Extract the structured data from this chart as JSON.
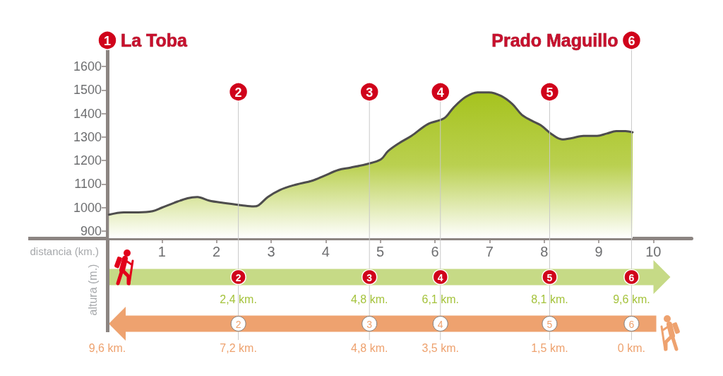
{
  "chart_data": {
    "type": "area",
    "x": [
      0.03,
      0.3,
      0.57,
      0.83,
      1.0,
      1.22,
      1.47,
      1.65,
      1.86,
      2.12,
      2.46,
      2.68,
      2.77,
      2.94,
      3.16,
      3.41,
      3.76,
      3.97,
      4.23,
      4.45,
      4.75,
      5.01,
      5.14,
      5.35,
      5.57,
      5.87,
      6.17,
      6.34,
      6.56,
      6.78,
      6.99,
      7.21,
      7.42,
      7.59,
      7.77,
      7.94,
      8.15,
      8.33,
      8.5,
      8.72,
      8.97,
      9.15,
      9.32,
      9.49,
      9.62
    ],
    "values": [
      970,
      980,
      980,
      985,
      1000,
      1020,
      1040,
      1045,
      1030,
      1020,
      1010,
      1005,
      1010,
      1045,
      1075,
      1095,
      1115,
      1135,
      1160,
      1170,
      1185,
      1205,
      1240,
      1275,
      1305,
      1355,
      1380,
      1425,
      1470,
      1490,
      1490,
      1475,
      1440,
      1395,
      1370,
      1350,
      1310,
      1290,
      1295,
      1305,
      1305,
      1315,
      1325,
      1325,
      1320
    ],
    "color": "#a6c31e",
    "xlabel": "distancia (km.)",
    "ylabel": "altura (m.)",
    "xlim": [
      0,
      10.7
    ],
    "xticks": [
      1,
      2,
      3,
      4,
      5,
      6,
      7,
      8,
      9,
      10
    ],
    "ylim": [
      870,
      1700
    ],
    "yticks": [
      900,
      1000,
      1100,
      1200,
      1300,
      1400,
      1500,
      1600
    ],
    "ref_lines": [
      {
        "axis": "x",
        "value": 2.4,
        "label": "2,4 km.",
        "color": "#c8c8c8"
      },
      {
        "axis": "x",
        "value": 4.8,
        "label": "4,8 km.",
        "color": "#c8c8c8"
      },
      {
        "axis": "x",
        "value": 6.1,
        "label": "6,1 km.",
        "color": "#c8c8c8"
      },
      {
        "axis": "x",
        "value": 8.1,
        "label": "8,1 km.",
        "color": "#c8c8c8"
      },
      {
        "axis": "x",
        "value": 9.6,
        "label": "9,6 km.",
        "color": "#c8c8c8"
      }
    ],
    "annotations": [
      {
        "text": "1",
        "x": 0
      },
      "9,6 km.",
      "La Toba",
      {
        "text": "2",
        "x": 2.4
      },
      "7,2 km.",
      {
        "text": "3",
        "x": 4.8
      },
      "4,8 km.",
      {
        "text": "4",
        "x": 6.1
      },
      "3,5 km.",
      {
        "text": "5",
        "x": 8.1
      },
      "1,5 km.",
      {
        "text": "6",
        "x": 9.6
      },
      "0 km.",
      "Prado Maguillo"
    ],
    "marker": "none"
  }
}
